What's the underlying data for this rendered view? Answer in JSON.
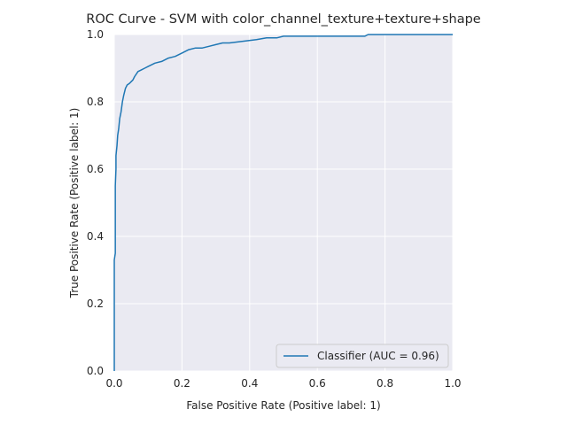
{
  "chart_data": {
    "type": "line",
    "title": "ROC Curve - SVM with color_channel_texture+texture+shape",
    "xlabel": "False Positive Rate (Positive label: 1)",
    "ylabel": "True Positive Rate (Positive label: 1)",
    "xlim": [
      0.0,
      1.0
    ],
    "ylim": [
      0.0,
      1.0
    ],
    "xticks": [
      "0.0",
      "0.2",
      "0.4",
      "0.6",
      "0.8",
      "1.0"
    ],
    "yticks": [
      "0.0",
      "0.2",
      "0.4",
      "0.6",
      "0.8",
      "1.0"
    ],
    "grid": true,
    "legend_position": "lower-right",
    "series": [
      {
        "name": "Classifier (AUC = 0.96)",
        "color": "#1f77b4",
        "x": [
          0.0,
          0.0,
          0.003,
          0.003,
          0.005,
          0.005,
          0.008,
          0.01,
          0.013,
          0.016,
          0.02,
          0.024,
          0.028,
          0.033,
          0.038,
          0.045,
          0.05,
          0.055,
          0.06,
          0.07,
          0.08,
          0.09,
          0.1,
          0.11,
          0.12,
          0.14,
          0.16,
          0.18,
          0.19,
          0.2,
          0.22,
          0.24,
          0.26,
          0.28,
          0.3,
          0.32,
          0.34,
          0.38,
          0.42,
          0.45,
          0.48,
          0.5,
          0.55,
          0.6,
          0.65,
          0.7,
          0.74,
          0.75,
          0.8,
          0.9,
          1.0
        ],
        "y": [
          0.0,
          0.33,
          0.35,
          0.55,
          0.6,
          0.64,
          0.67,
          0.7,
          0.72,
          0.75,
          0.77,
          0.8,
          0.82,
          0.84,
          0.85,
          0.855,
          0.86,
          0.865,
          0.875,
          0.89,
          0.895,
          0.9,
          0.905,
          0.91,
          0.915,
          0.92,
          0.93,
          0.935,
          0.94,
          0.945,
          0.955,
          0.96,
          0.96,
          0.965,
          0.97,
          0.975,
          0.975,
          0.98,
          0.985,
          0.99,
          0.99,
          0.995,
          0.995,
          0.995,
          0.995,
          0.995,
          0.995,
          1.0,
          1.0,
          1.0,
          1.0
        ]
      }
    ]
  }
}
